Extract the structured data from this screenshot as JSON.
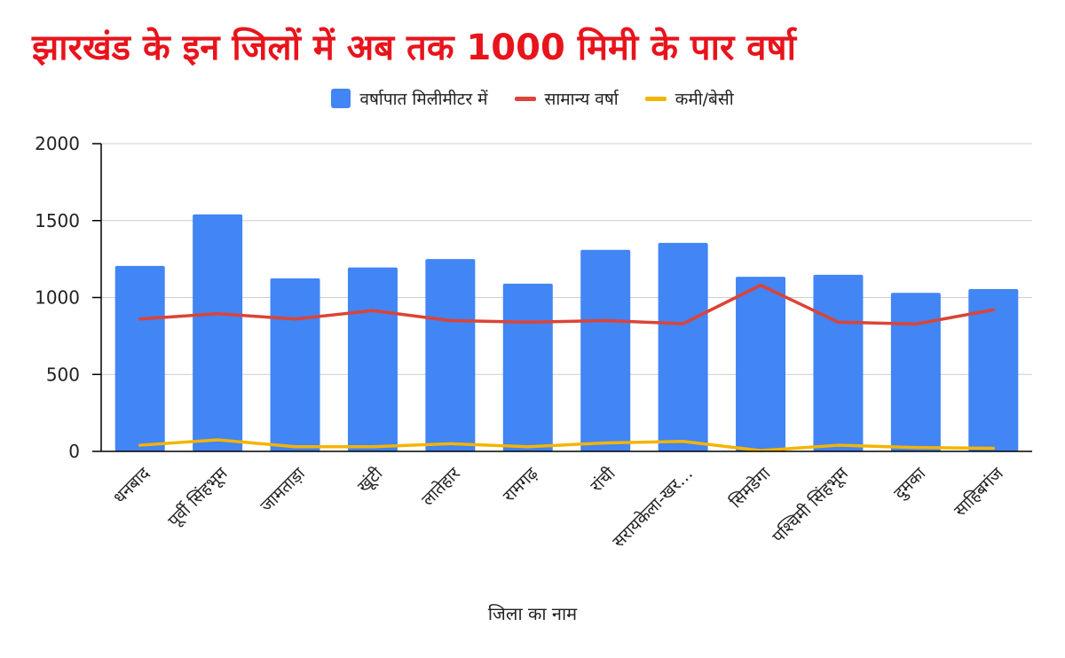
{
  "colors": {
    "title": "#e8141c",
    "bars": "#4285f4",
    "normal_line": "#db4437",
    "deficit_line": "#f4b400",
    "grid": "#cccccc",
    "axis": "#000000"
  },
  "chart_data": {
    "type": "bar",
    "title": "झारखंड के इन जिलों में अब तक 1000 मिमी के पार वर्षा",
    "xlabel": "जिला का नाम",
    "ylabel": "",
    "ylim": [
      0,
      2000
    ],
    "yticks": [
      0,
      500,
      1000,
      1500,
      2000
    ],
    "grid": true,
    "legend_position": "top",
    "categories": [
      "धनबाद",
      "पूर्वी सिंहभूम",
      "जामताड़ा",
      "खूंटी",
      "लातेहार",
      "रामगढ़",
      "रांची",
      "सरायकेला-खर…",
      "सिमडेगा",
      "पश्चिमी सिंहभूम",
      "दुमका",
      "साहिबगंज"
    ],
    "series": [
      {
        "name": "वर्षापात मिलीमीटर में",
        "kind": "bar",
        "color": "#4285f4",
        "values": [
          1205,
          1540,
          1125,
          1195,
          1250,
          1090,
          1310,
          1355,
          1135,
          1148,
          1030,
          1055
        ]
      },
      {
        "name": "सामान्य वर्षा",
        "kind": "line",
        "color": "#db4437",
        "values": [
          860,
          895,
          860,
          915,
          850,
          840,
          850,
          830,
          1080,
          840,
          828,
          920
        ]
      },
      {
        "name": "कमी/बेसी",
        "kind": "line",
        "color": "#f4b400",
        "values": [
          40,
          75,
          30,
          30,
          50,
          30,
          55,
          65,
          5,
          40,
          25,
          20
        ]
      }
    ]
  }
}
